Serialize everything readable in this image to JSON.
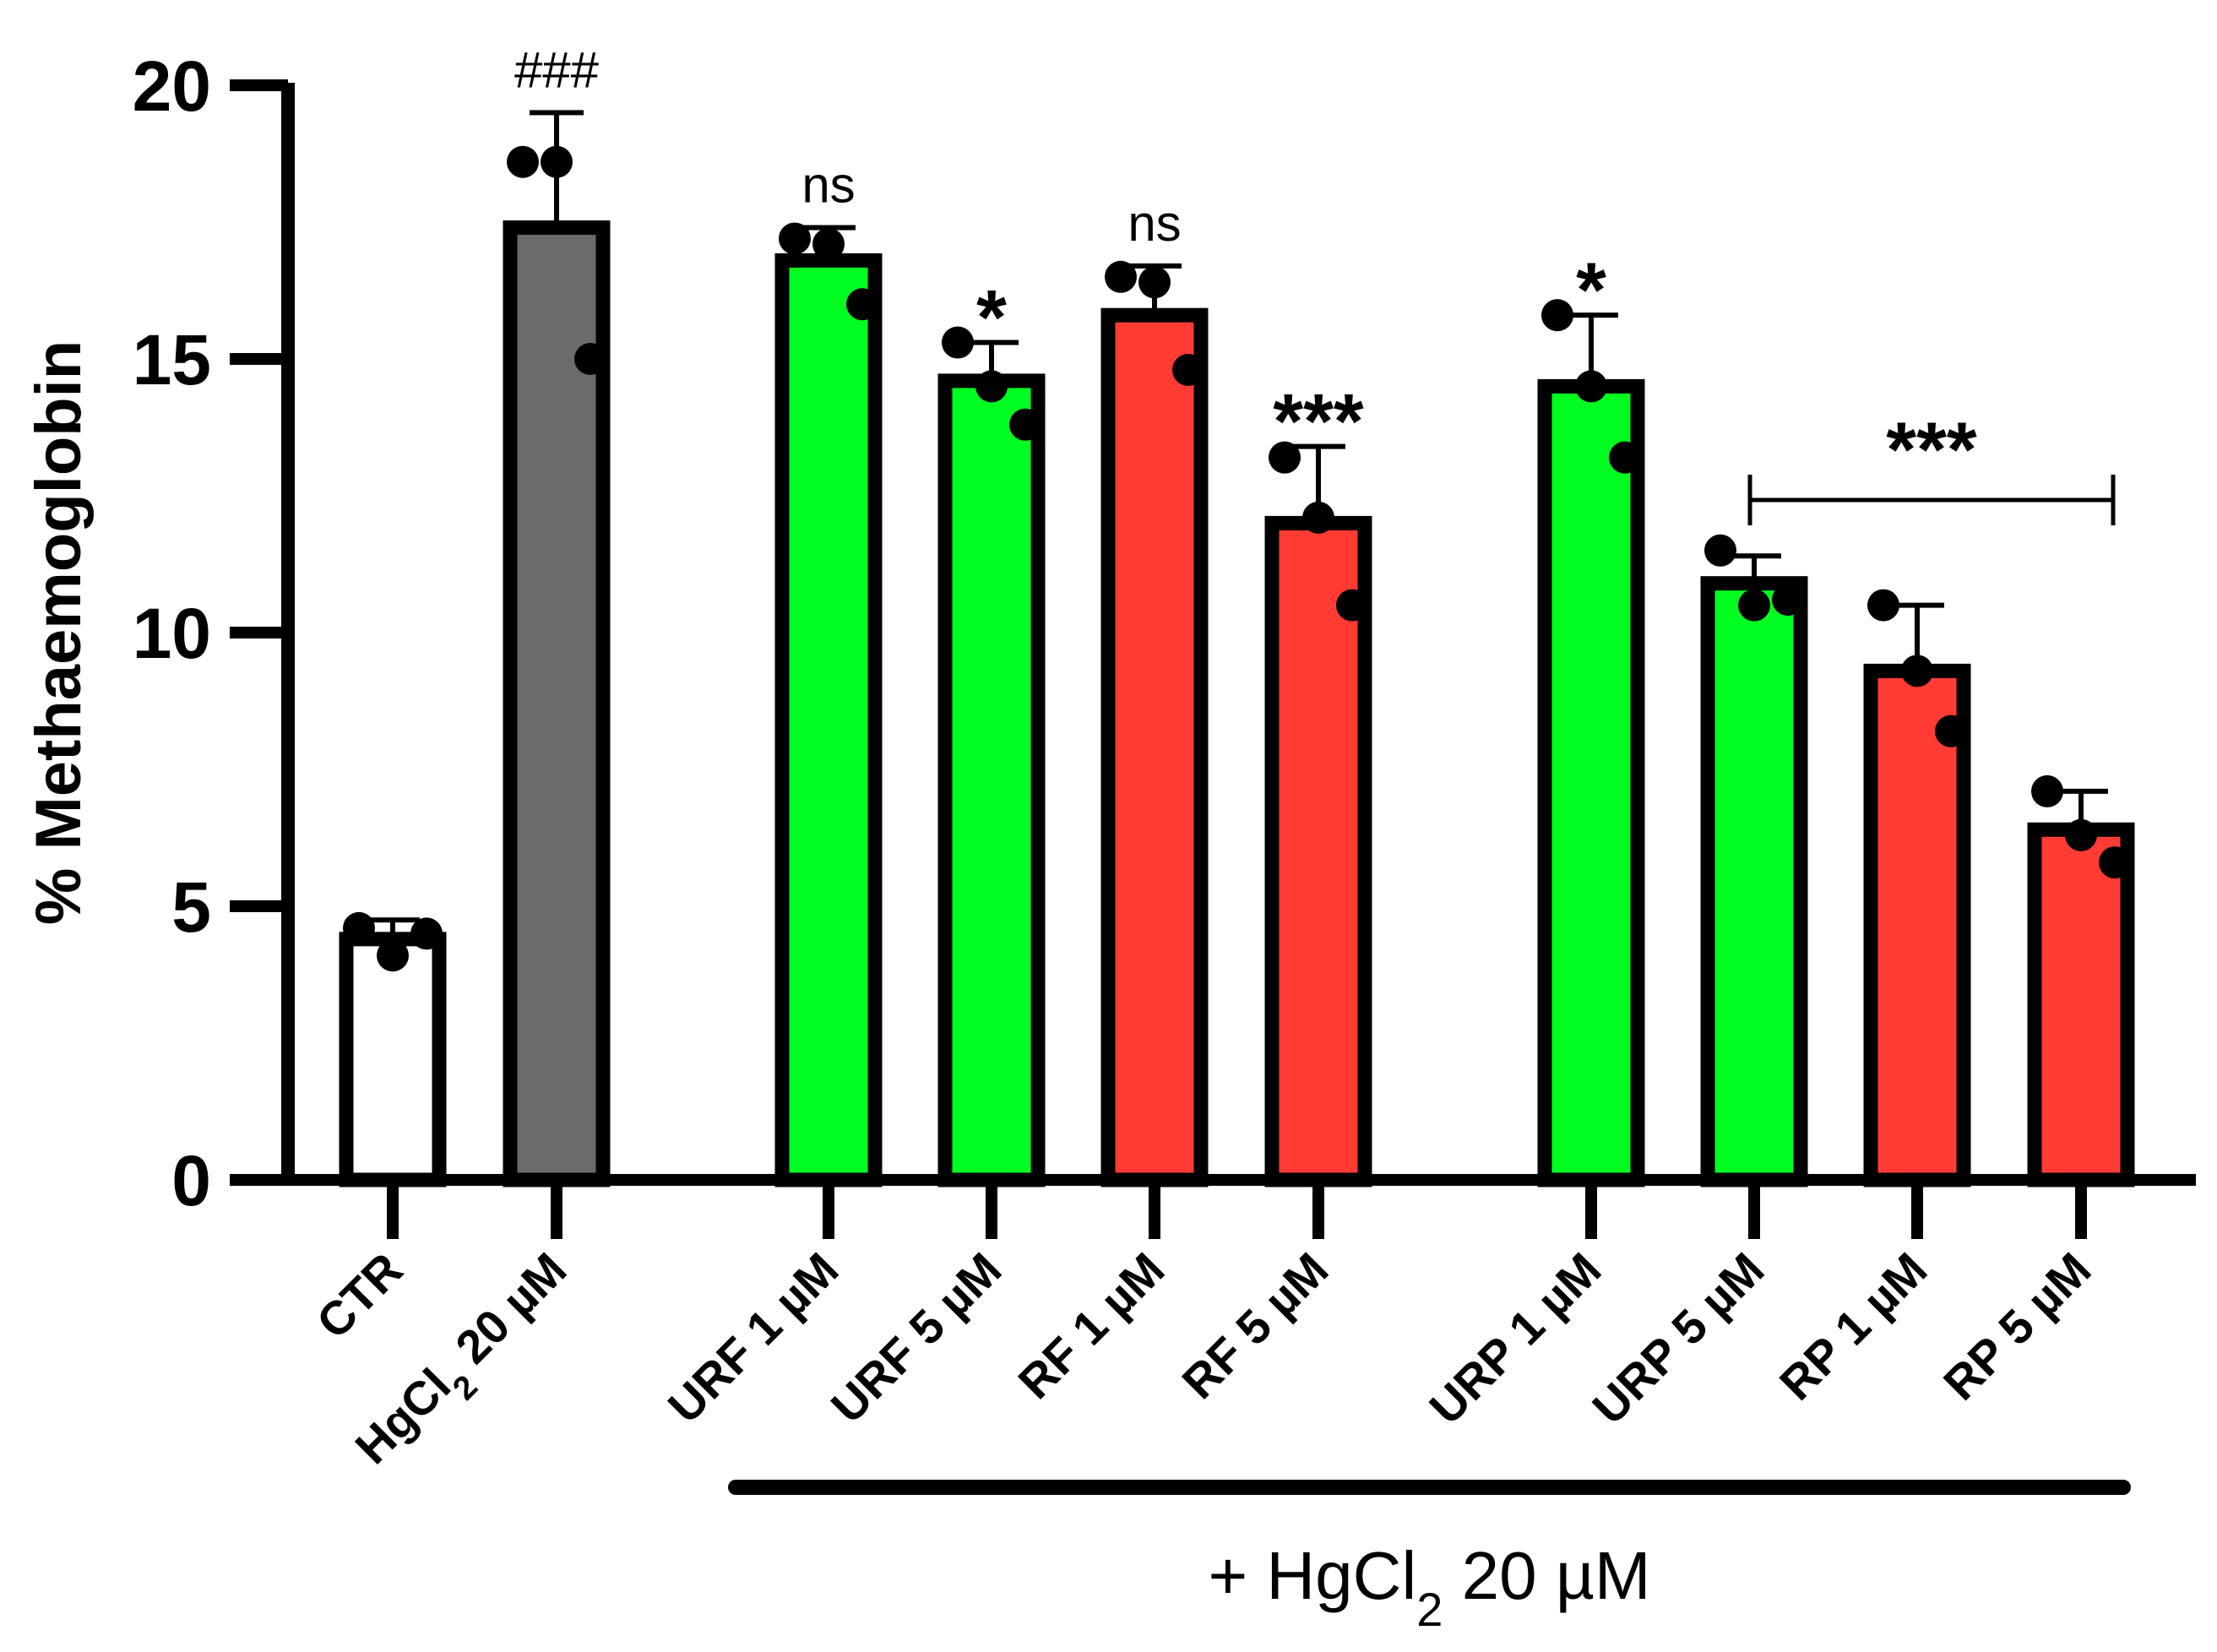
{
  "chart_data": {
    "type": "bar",
    "title": "",
    "xlabel": "",
    "ylabel": "% Methaemoglobin",
    "ylim": [
      0,
      20
    ],
    "yticks": [
      0,
      5,
      10,
      15,
      20
    ],
    "grid": false,
    "categories": [
      {
        "label": "CTR",
        "main": "CTR",
        "sub": "",
        "tail": ""
      },
      {
        "label": "HgCl2 20 µM",
        "main": "HgCl",
        "sub": "2",
        "tail": " 20 µM"
      },
      {
        "label": "URF 1 µM",
        "main": "URF 1 µM",
        "sub": "",
        "tail": ""
      },
      {
        "label": "URF 5 µM",
        "main": "URF 5 µM",
        "sub": "",
        "tail": ""
      },
      {
        "label": "RF 1 µM",
        "main": "RF 1 µM",
        "sub": "",
        "tail": ""
      },
      {
        "label": "RF 5 µM",
        "main": "RF 5 µM",
        "sub": "",
        "tail": ""
      },
      {
        "label": "URP 1 µM",
        "main": "URP 1 µM",
        "sub": "",
        "tail": ""
      },
      {
        "label": "URP 5 µM",
        "main": "URP 5 µM",
        "sub": "",
        "tail": ""
      },
      {
        "label": "RP 1 µM",
        "main": "RP 1 µM",
        "sub": "",
        "tail": ""
      },
      {
        "label": "RP 5 µM",
        "main": "RP 5 µM",
        "sub": "",
        "tail": ""
      }
    ],
    "values": [
      4.4,
      17.4,
      16.8,
      14.6,
      15.8,
      12.0,
      14.5,
      10.9,
      9.3,
      6.4
    ],
    "errors": [
      0.35,
      2.1,
      0.6,
      0.7,
      0.9,
      1.4,
      1.3,
      0.5,
      1.2,
      0.7
    ],
    "points": [
      [
        4.6,
        4.1,
        4.5
      ],
      [
        18.6,
        18.6,
        15.0
      ],
      [
        17.2,
        17.1,
        16.0
      ],
      [
        15.3,
        14.5,
        13.8
      ],
      [
        16.5,
        16.4,
        14.8
      ],
      [
        13.2,
        12.1,
        10.5
      ],
      [
        15.8,
        14.5,
        13.2
      ],
      [
        11.5,
        10.5,
        10.6
      ],
      [
        10.5,
        9.3,
        8.2
      ],
      [
        7.1,
        6.3,
        5.8
      ]
    ],
    "bar_colors": [
      "#ffffff",
      "#6b6b6b",
      "#00ff21",
      "#00ff21",
      "#ff3b33",
      "#ff3b33",
      "#00ff21",
      "#00ff21",
      "#ff3b33",
      "#ff3b33"
    ],
    "annotations": [
      {
        "index": 1,
        "text": "###"
      },
      {
        "index": 2,
        "text": "ns"
      },
      {
        "index": 3,
        "text": "*"
      },
      {
        "index": 4,
        "text": "ns"
      },
      {
        "index": 5,
        "text": "***"
      },
      {
        "index": 6,
        "text": "*"
      }
    ],
    "bracket": {
      "from_index": 7,
      "to_index": 9,
      "text": "***"
    },
    "group_label": {
      "main": "+ HgCl",
      "sub": "2",
      "tail": " 20 µM",
      "from_index": 2,
      "to_index": 9
    }
  }
}
